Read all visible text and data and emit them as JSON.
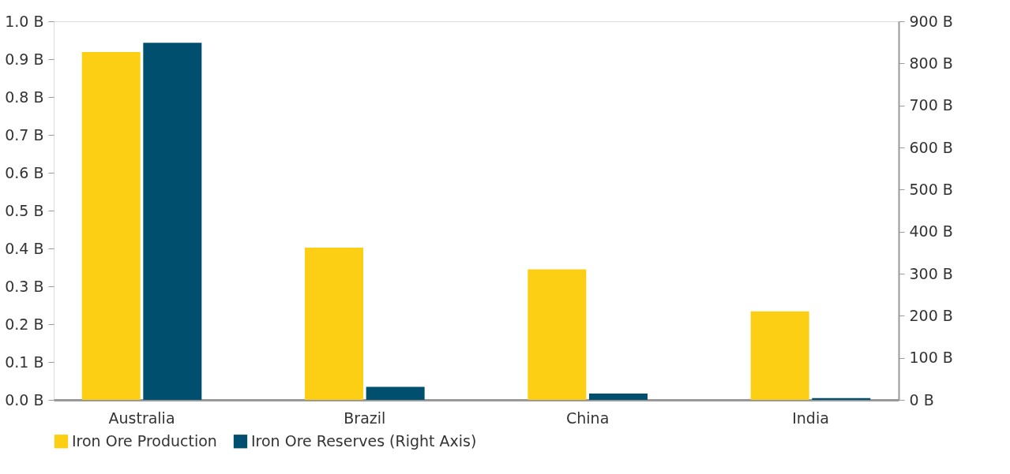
{
  "chart_data": {
    "type": "bar",
    "categories": [
      "Australia",
      "Brazil",
      "China",
      "India"
    ],
    "series": [
      {
        "name": "Iron Ore Production",
        "color": "#fccf14",
        "values": [
          0.919,
          0.402,
          0.345,
          0.234
        ]
      },
      {
        "name": "Iron Ore Reserves (Right Axis)",
        "color": "#004f6e",
        "axis": "y2",
        "values": [
          849,
          31,
          15,
          4
        ]
      }
    ],
    "ylim": [
      0,
      1.0
    ],
    "yticks": [
      {
        "value": 0,
        "label": "0.0 B"
      },
      {
        "value": 0.1,
        "label": "0.1 B"
      },
      {
        "value": 0.2,
        "label": "0.2 B"
      },
      {
        "value": 0.3,
        "label": "0.3 B"
      },
      {
        "value": 0.4,
        "label": "0.4 B"
      },
      {
        "value": 0.5,
        "label": "0.5 B"
      },
      {
        "value": 0.6,
        "label": "0.6 B"
      },
      {
        "value": 0.7,
        "label": "0.7 B"
      },
      {
        "value": 0.8,
        "label": "0.8 B"
      },
      {
        "value": 0.9,
        "label": "0.9 B"
      },
      {
        "value": 1.0,
        "label": "1.0 B"
      }
    ],
    "y2lim": [
      0,
      900
    ],
    "y2ticks": [
      {
        "value": 0,
        "label": "0 B"
      },
      {
        "value": 100,
        "label": "100 B"
      },
      {
        "value": 200,
        "label": "200 B"
      },
      {
        "value": 300,
        "label": "300 B"
      },
      {
        "value": 400,
        "label": "400 B"
      },
      {
        "value": 500,
        "label": "500 B"
      },
      {
        "value": 600,
        "label": "600 B"
      },
      {
        "value": 700,
        "label": "700 B"
      },
      {
        "value": 800,
        "label": "800 B"
      },
      {
        "value": 900,
        "label": "900 B"
      }
    ],
    "grid": false,
    "legend": "bottom"
  }
}
